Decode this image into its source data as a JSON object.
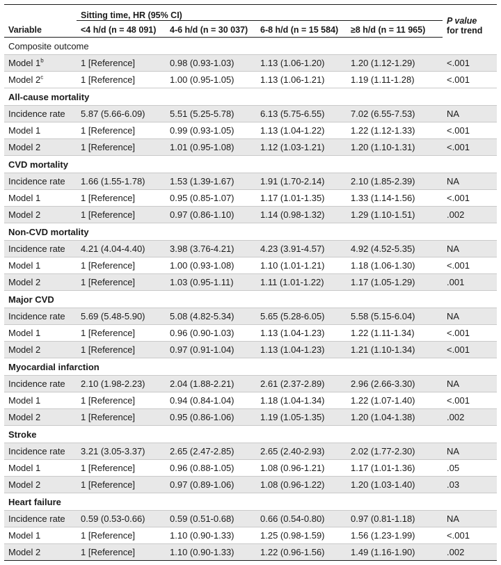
{
  "header": {
    "variable": "Variable",
    "group": "Sitting time, HR (95% CI)",
    "columns": [
      "<4 h/d (n = 48 091)",
      "4-6 h/d (n = 30 037)",
      "6-8 h/d (n = 15 584)",
      "≥8 h/d (n = 11 965)"
    ],
    "p_value_line1": "P value",
    "p_value_line2": "for trend"
  },
  "sections": [
    {
      "title": "Composite outcome",
      "rows": [
        {
          "label": "Model 1",
          "sup": "b",
          "values": [
            "1 [Reference]",
            "0.98 (0.93-1.03)",
            "1.13 (1.06-1.20)",
            "1.20 (1.12-1.29)"
          ],
          "p": "<.001"
        },
        {
          "label": "Model 2",
          "sup": "c",
          "values": [
            "1 [Reference]",
            "1.00 (0.95-1.05)",
            "1.13 (1.06-1.21)",
            "1.19 (1.11-1.28)"
          ],
          "p": "<.001"
        }
      ]
    },
    {
      "title": "All-cause mortality",
      "rows": [
        {
          "label": "Incidence rate",
          "values": [
            "5.87 (5.66-6.09)",
            "5.51 (5.25-5.78)",
            "6.13 (5.75-6.55)",
            "7.02 (6.55-7.53)"
          ],
          "p": "NA"
        },
        {
          "label": "Model 1",
          "values": [
            "1 [Reference]",
            "0.99 (0.93-1.05)",
            "1.13 (1.04-1.22)",
            "1.22 (1.12-1.33)"
          ],
          "p": "<.001"
        },
        {
          "label": "Model 2",
          "values": [
            "1 [Reference]",
            "1.01 (0.95-1.08)",
            "1.12 (1.03-1.21)",
            "1.20 (1.10-1.31)"
          ],
          "p": "<.001"
        }
      ]
    },
    {
      "title": "CVD mortality",
      "rows": [
        {
          "label": "Incidence rate",
          "values": [
            "1.66 (1.55-1.78)",
            "1.53 (1.39-1.67)",
            "1.91 (1.70-2.14)",
            "2.10 (1.85-2.39)"
          ],
          "p": "NA"
        },
        {
          "label": "Model 1",
          "values": [
            "1 [Reference]",
            "0.95 (0.85-1.07)",
            "1.17 (1.01-1.35)",
            "1.33 (1.14-1.56)"
          ],
          "p": "<.001"
        },
        {
          "label": "Model 2",
          "values": [
            "1 [Reference]",
            "0.97 (0.86-1.10)",
            "1.14 (0.98-1.32)",
            "1.29 (1.10-1.51)"
          ],
          "p": ".002"
        }
      ]
    },
    {
      "title": "Non-CVD mortality",
      "rows": [
        {
          "label": "Incidence rate",
          "values": [
            "4.21 (4.04-4.40)",
            "3.98 (3.76-4.21)",
            "4.23 (3.91-4.57)",
            "4.92 (4.52-5.35)"
          ],
          "p": "NA"
        },
        {
          "label": "Model 1",
          "values": [
            "1 [Reference]",
            "1.00 (0.93-1.08)",
            "1.10 (1.01-1.21)",
            "1.18 (1.06-1.30)"
          ],
          "p": "<.001"
        },
        {
          "label": "Model 2",
          "values": [
            "1 [Reference]",
            "1.03 (0.95-1.11)",
            "1.11 (1.01-1.22)",
            "1.17 (1.05-1.29)"
          ],
          "p": ".001"
        }
      ]
    },
    {
      "title": "Major CVD",
      "rows": [
        {
          "label": "Incidence rate",
          "values": [
            "5.69 (5.48-5.90)",
            "5.08 (4.82-5.34)",
            "5.65 (5.28-6.05)",
            "5.58 (5.15-6.04)"
          ],
          "p": "NA"
        },
        {
          "label": "Model 1",
          "values": [
            "1 [Reference]",
            "0.96 (0.90-1.03)",
            "1.13 (1.04-1.23)",
            "1.22 (1.11-1.34)"
          ],
          "p": "<.001"
        },
        {
          "label": "Model 2",
          "values": [
            "1 [Reference]",
            "0.97 (0.91-1.04)",
            "1.13 (1.04-1.23)",
            "1.21 (1.10-1.34)"
          ],
          "p": "<.001"
        }
      ]
    },
    {
      "title": "Myocardial infarction",
      "rows": [
        {
          "label": "Incidence rate",
          "values": [
            "2.10 (1.98-2.23)",
            "2.04 (1.88-2.21)",
            "2.61 (2.37-2.89)",
            "2.96 (2.66-3.30)"
          ],
          "p": "NA"
        },
        {
          "label": "Model 1",
          "values": [
            "1 [Reference]",
            "0.94 (0.84-1.04)",
            "1.18 (1.04-1.34)",
            "1.22 (1.07-1.40)"
          ],
          "p": "<.001"
        },
        {
          "label": "Model 2",
          "values": [
            "1 [Reference]",
            "0.95 (0.86-1.06)",
            "1.19 (1.05-1.35)",
            "1.20 (1.04-1.38)"
          ],
          "p": ".002"
        }
      ]
    },
    {
      "title": "Stroke",
      "rows": [
        {
          "label": "Incidence rate",
          "values": [
            "3.21 (3.05-3.37)",
            "2.65 (2.47-2.85)",
            "2.65 (2.40-2.93)",
            "2.02 (1.77-2.30)"
          ],
          "p": "NA"
        },
        {
          "label": "Model 1",
          "values": [
            "1 [Reference]",
            "0.96 (0.88-1.05)",
            "1.08 (0.96-1.21)",
            "1.17 (1.01-1.36)"
          ],
          "p": ".05"
        },
        {
          "label": "Model 2",
          "values": [
            "1 [Reference]",
            "0.97 (0.89-1.06)",
            "1.08 (0.96-1.22)",
            "1.20 (1.03-1.40)"
          ],
          "p": ".03"
        }
      ]
    },
    {
      "title": "Heart failure",
      "rows": [
        {
          "label": "Incidence rate",
          "values": [
            "0.59 (0.53-0.66)",
            "0.59 (0.51-0.68)",
            "0.66 (0.54-0.80)",
            "0.97 (0.81-1.18)"
          ],
          "p": "NA"
        },
        {
          "label": "Model 1",
          "values": [
            "1 [Reference]",
            "1.10 (0.90-1.33)",
            "1.25 (0.98-1.59)",
            "1.56 (1.23-1.99)"
          ],
          "p": "<.001"
        },
        {
          "label": "Model 2",
          "values": [
            "1 [Reference]",
            "1.10 (0.90-1.33)",
            "1.22 (0.96-1.56)",
            "1.49 (1.16-1.90)"
          ],
          "p": ".002"
        }
      ]
    }
  ]
}
